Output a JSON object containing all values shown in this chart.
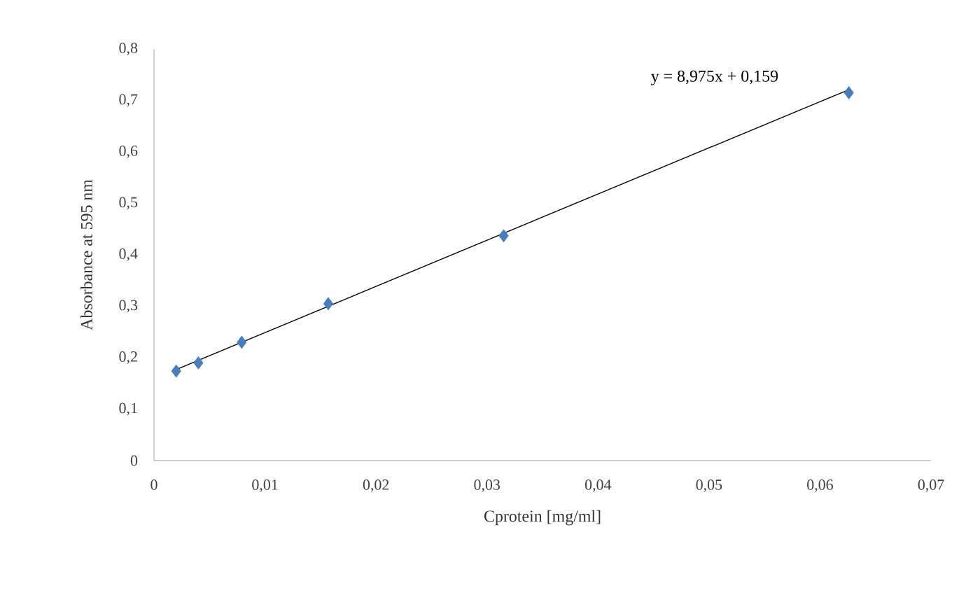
{
  "chart_data": {
    "type": "scatter",
    "xlabel": "Cprotein   [mg/ml]",
    "ylabel": "Absorbance at 595 nm",
    "annotations": [
      "y = 8,975x + 0,159"
    ],
    "marker": "diamond",
    "grid": false,
    "xlim": [
      0,
      0.07
    ],
    "ylim": [
      0,
      0.8
    ],
    "xticks": [
      0,
      {
        "value": 0.01,
        "label": "0,01"
      },
      {
        "value": 0.02,
        "label": "0,02"
      },
      {
        "value": 0.03,
        "label": "0,03"
      },
      {
        "value": 0.04,
        "label": "0,04"
      },
      {
        "value": 0.05,
        "label": "0,05"
      },
      {
        "value": 0.06,
        "label": "0,06"
      },
      {
        "value": 0.07,
        "label": "0,07"
      }
    ],
    "yticks": [
      0,
      {
        "value": 0.1,
        "label": "0,1"
      },
      {
        "value": 0.2,
        "label": "0,2"
      },
      {
        "value": 0.3,
        "label": "0,3"
      },
      {
        "value": 0.4,
        "label": "0,4"
      },
      {
        "value": 0.5,
        "label": "0,5"
      },
      {
        "value": 0.6,
        "label": "0,6"
      },
      {
        "value": 0.7,
        "label": "0,7"
      },
      {
        "value": 0.8,
        "label": "0,8"
      }
    ],
    "series": [
      {
        "color": "#4a7ebb",
        "x": [
          0.002,
          0.004,
          0.0079,
          0.0157,
          0.0315,
          0.0626
        ],
        "values": [
          0.174,
          0.19,
          0.23,
          0.305,
          0.437,
          0.715
        ]
      },
      {
        "type": "line",
        "marker": "none",
        "color": "#000000",
        "x": [
          0.002,
          0.0626
        ],
        "values": [
          0.177,
          0.721
        ]
      }
    ]
  }
}
